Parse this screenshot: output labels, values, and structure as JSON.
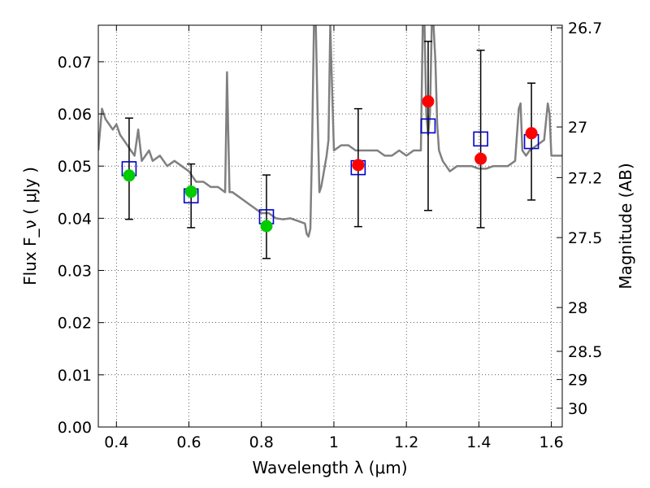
{
  "chart_data": {
    "type": "scatter",
    "xlabel": "Wavelength  λ (μm)",
    "ylabel": "Flux  F_ν  ( μJy )",
    "ylabel_right": "Magnitude (AB)",
    "xlim": [
      0.35,
      1.63
    ],
    "ylim": [
      0.0,
      0.077
    ],
    "grid": true,
    "x_ticks": [
      0.4,
      0.6,
      0.8,
      1.0,
      1.2,
      1.4,
      1.6
    ],
    "x_tick_labels": [
      "0.4",
      "0.6",
      "0.8",
      "1",
      "1.2",
      "1.4",
      "1.6"
    ],
    "y_ticks": [
      0.0,
      0.01,
      0.02,
      0.03,
      0.04,
      0.05,
      0.06,
      0.07
    ],
    "y_tick_labels": [
      "0.00",
      "0.01",
      "0.02",
      "0.03",
      "0.04",
      "0.05",
      "0.06",
      "0.07"
    ],
    "right_ticks": [
      {
        "label": "26.7",
        "flux": 0.0765
      },
      {
        "label": "27",
        "flux": 0.0575
      },
      {
        "label": "27.2",
        "flux": 0.0478
      },
      {
        "label": "27.5",
        "flux": 0.0363
      },
      {
        "label": "28",
        "flux": 0.0229
      },
      {
        "label": "28.5",
        "flux": 0.0145
      },
      {
        "label": "29",
        "flux": 0.0091
      },
      {
        "label": "30",
        "flux": 0.0036
      }
    ],
    "series": [
      {
        "kind": "line",
        "color": "#808080",
        "x": [
          0.35,
          0.36,
          0.37,
          0.38,
          0.39,
          0.4,
          0.41,
          0.42,
          0.43,
          0.44,
          0.45,
          0.46,
          0.47,
          0.48,
          0.49,
          0.5,
          0.52,
          0.54,
          0.56,
          0.58,
          0.6,
          0.62,
          0.64,
          0.66,
          0.68,
          0.7,
          0.705,
          0.708,
          0.712,
          0.72,
          0.74,
          0.76,
          0.78,
          0.8,
          0.82,
          0.84,
          0.86,
          0.88,
          0.9,
          0.92,
          0.925,
          0.93,
          0.935,
          0.94,
          0.945,
          0.95,
          0.955,
          0.96,
          0.965,
          0.97,
          0.975,
          0.98,
          0.985,
          0.99,
          0.995,
          1.0,
          1.02,
          1.04,
          1.06,
          1.08,
          1.1,
          1.12,
          1.14,
          1.16,
          1.18,
          1.2,
          1.22,
          1.24,
          1.245,
          1.25,
          1.255,
          1.26,
          1.265,
          1.27,
          1.275,
          1.28,
          1.285,
          1.29,
          1.3,
          1.32,
          1.34,
          1.36,
          1.38,
          1.4,
          1.42,
          1.44,
          1.46,
          1.48,
          1.5,
          1.51,
          1.515,
          1.52,
          1.53,
          1.54,
          1.56,
          1.58,
          1.59,
          1.595,
          1.6,
          1.62,
          1.63
        ],
        "y": [
          0.053,
          0.061,
          0.059,
          0.058,
          0.057,
          0.058,
          0.056,
          0.055,
          0.054,
          0.053,
          0.052,
          0.057,
          0.051,
          0.052,
          0.053,
          0.051,
          0.052,
          0.05,
          0.051,
          0.05,
          0.049,
          0.047,
          0.047,
          0.046,
          0.046,
          0.045,
          0.068,
          0.058,
          0.045,
          0.045,
          0.044,
          0.043,
          0.042,
          0.041,
          0.041,
          0.04,
          0.0398,
          0.04,
          0.0395,
          0.039,
          0.037,
          0.0365,
          0.038,
          0.055,
          0.077,
          0.077,
          0.06,
          0.045,
          0.046,
          0.048,
          0.05,
          0.052,
          0.055,
          0.077,
          0.065,
          0.053,
          0.054,
          0.054,
          0.053,
          0.053,
          0.053,
          0.053,
          0.052,
          0.052,
          0.053,
          0.052,
          0.053,
          0.053,
          0.077,
          0.077,
          0.06,
          0.056,
          0.06,
          0.077,
          0.077,
          0.07,
          0.058,
          0.053,
          0.051,
          0.049,
          0.05,
          0.05,
          0.05,
          0.0495,
          0.0495,
          0.05,
          0.05,
          0.05,
          0.051,
          0.061,
          0.062,
          0.053,
          0.052,
          0.053,
          0.054,
          0.055,
          0.062,
          0.06,
          0.052,
          0.052,
          0.052
        ]
      },
      {
        "kind": "points",
        "marker": "open-square",
        "color": "#0000cc",
        "x": [
          0.435,
          0.606,
          0.814,
          1.067,
          1.26,
          1.405,
          1.545
        ],
        "y": [
          0.0495,
          0.0443,
          0.0403,
          0.0497,
          0.0577,
          0.0552,
          0.0547
        ],
        "yerr": [
          0.0097,
          0.0061,
          0.008,
          0.0113,
          0.0162,
          0.017,
          0.0112
        ]
      },
      {
        "kind": "points",
        "marker": "filled-circle",
        "color": "#00cc00",
        "x": [
          0.435,
          0.606,
          0.814
        ],
        "y": [
          0.0482,
          0.0451,
          0.0385
        ]
      },
      {
        "kind": "points",
        "marker": "filled-circle",
        "color": "#ff0000",
        "x": [
          1.067,
          1.26,
          1.405,
          1.545
        ],
        "y": [
          0.0502,
          0.0624,
          0.0514,
          0.0563
        ]
      }
    ]
  }
}
